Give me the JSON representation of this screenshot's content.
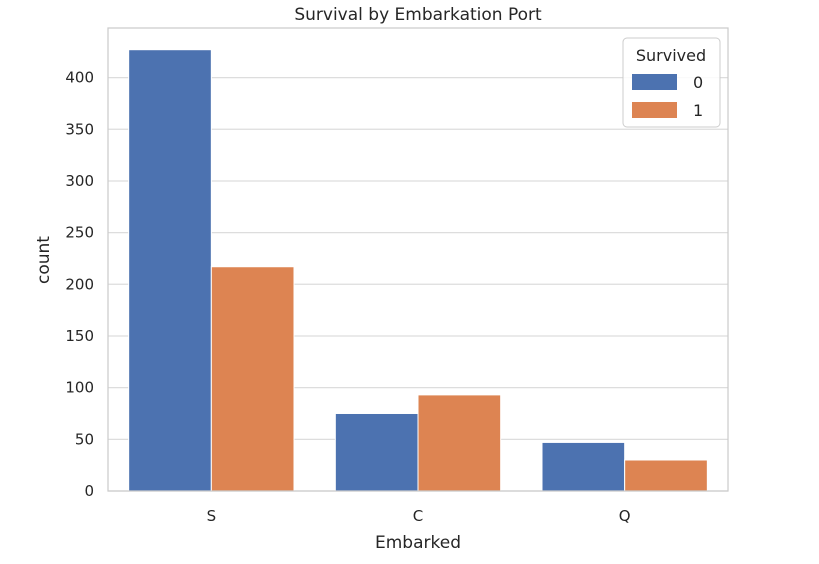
{
  "chart_data": {
    "type": "bar",
    "title": "Survival by Embarkation Port",
    "xlabel": "Embarked",
    "ylabel": "count",
    "categories": [
      "S",
      "C",
      "Q"
    ],
    "series": [
      {
        "name": "0",
        "color": "#4c72b0",
        "values": [
          427,
          75,
          47
        ]
      },
      {
        "name": "1",
        "color": "#dd8452",
        "values": [
          217,
          93,
          30
        ]
      }
    ],
    "ylim": [
      0,
      448
    ],
    "yticks": [
      0,
      50,
      100,
      150,
      200,
      250,
      300,
      350,
      400
    ],
    "legend": {
      "title": "Survived",
      "placement": "top-right"
    },
    "grid": true
  }
}
